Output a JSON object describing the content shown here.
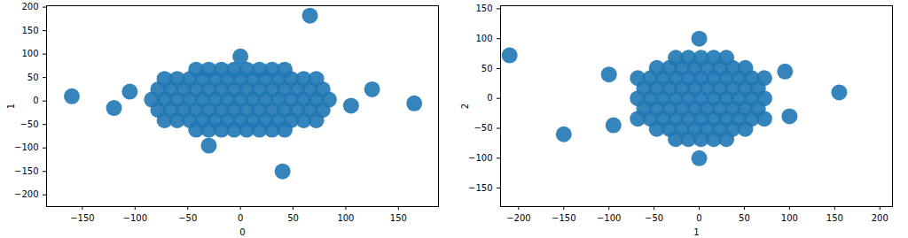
{
  "chart_data": [
    {
      "type": "scatter",
      "xlabel": "0",
      "ylabel": "1",
      "color": "#1f77b4",
      "xlim": [
        -184,
        188
      ],
      "ylim": [
        -225,
        203
      ],
      "xticks": [
        -150,
        -100,
        -50,
        0,
        50,
        100,
        150
      ],
      "yticks": [
        -200,
        -150,
        -100,
        -50,
        0,
        50,
        100,
        150,
        200
      ],
      "x": [
        -84,
        -72,
        -60,
        -48,
        -36,
        -24,
        -12,
        0,
        12,
        24,
        36,
        48,
        60,
        72,
        84,
        -78,
        -66,
        -54,
        -42,
        -30,
        -18,
        -6,
        6,
        18,
        30,
        42,
        54,
        66,
        78,
        -78,
        -66,
        -54,
        -42,
        -30,
        -18,
        -6,
        6,
        18,
        30,
        42,
        54,
        66,
        78,
        -72,
        -60,
        -48,
        -36,
        -24,
        -12,
        0,
        12,
        24,
        36,
        48,
        60,
        72,
        -72,
        -60,
        -48,
        -36,
        -24,
        -12,
        0,
        12,
        24,
        36,
        48,
        60,
        72,
        -42,
        -30,
        -18,
        -6,
        6,
        18,
        30,
        42,
        -42,
        -30,
        -18,
        -6,
        6,
        18,
        30,
        42,
        -105,
        105,
        -120,
        125,
        -160,
        165,
        0,
        -30,
        66,
        40
      ],
      "y": [
        3,
        3,
        3,
        3,
        3,
        3,
        3,
        3,
        3,
        3,
        3,
        3,
        3,
        3,
        3,
        25,
        25,
        25,
        25,
        25,
        25,
        25,
        25,
        25,
        25,
        25,
        25,
        25,
        25,
        -19,
        -19,
        -19,
        -19,
        -19,
        -19,
        -19,
        -19,
        -19,
        -19,
        -19,
        -19,
        -19,
        -19,
        47,
        47,
        47,
        47,
        47,
        47,
        47,
        47,
        47,
        47,
        47,
        47,
        47,
        -41,
        -41,
        -41,
        -41,
        -41,
        -41,
        -41,
        -41,
        -41,
        -41,
        -41,
        -41,
        -41,
        67,
        67,
        67,
        67,
        67,
        67,
        67,
        67,
        -61,
        -61,
        -61,
        -61,
        -61,
        -61,
        -61,
        -61,
        20,
        -10,
        -15,
        25,
        10,
        -5,
        95,
        -95,
        182,
        -150
      ]
    },
    {
      "type": "scatter",
      "xlabel": "1",
      "ylabel": "2",
      "color": "#1f77b4",
      "xlim": [
        -220,
        214
      ],
      "ylim": [
        -181,
        155
      ],
      "xticks": [
        -200,
        -150,
        -100,
        -50,
        0,
        50,
        100,
        150,
        200
      ],
      "yticks": [
        -150,
        -100,
        -50,
        0,
        50,
        100,
        150
      ],
      "x": [
        -68,
        -54,
        -40,
        -26,
        -12,
        2,
        16,
        30,
        44,
        58,
        72,
        -61,
        -47,
        -33,
        -19,
        -5,
        9,
        23,
        37,
        51,
        65,
        -61,
        -47,
        -33,
        -19,
        -5,
        9,
        23,
        37,
        51,
        65,
        -68,
        -54,
        -40,
        -26,
        -12,
        2,
        16,
        30,
        44,
        58,
        72,
        -68,
        -54,
        -40,
        -26,
        -12,
        2,
        16,
        30,
        44,
        58,
        72,
        -47,
        -33,
        -19,
        -5,
        9,
        23,
        37,
        51,
        -47,
        -33,
        -19,
        -5,
        9,
        23,
        37,
        51,
        -26,
        -12,
        2,
        16,
        30,
        -26,
        -12,
        2,
        16,
        30,
        -210,
        -100,
        100,
        95,
        -95,
        0,
        0,
        -150,
        155
      ],
      "y": [
        0,
        0,
        0,
        0,
        0,
        0,
        0,
        0,
        0,
        0,
        0,
        17,
        17,
        17,
        17,
        17,
        17,
        17,
        17,
        17,
        17,
        -17,
        -17,
        -17,
        -17,
        -17,
        -17,
        -17,
        -17,
        -17,
        -17,
        34,
        34,
        34,
        34,
        34,
        34,
        34,
        34,
        34,
        34,
        34,
        -34,
        -34,
        -34,
        -34,
        -34,
        -34,
        -34,
        -34,
        -34,
        -34,
        -34,
        51,
        51,
        51,
        51,
        51,
        51,
        51,
        51,
        -51,
        -51,
        -51,
        -51,
        -51,
        -51,
        -51,
        -51,
        68,
        68,
        68,
        68,
        68,
        -68,
        -68,
        -68,
        -68,
        -68,
        72,
        40,
        -30,
        45,
        -45,
        100,
        -100,
        -60,
        10
      ]
    }
  ]
}
